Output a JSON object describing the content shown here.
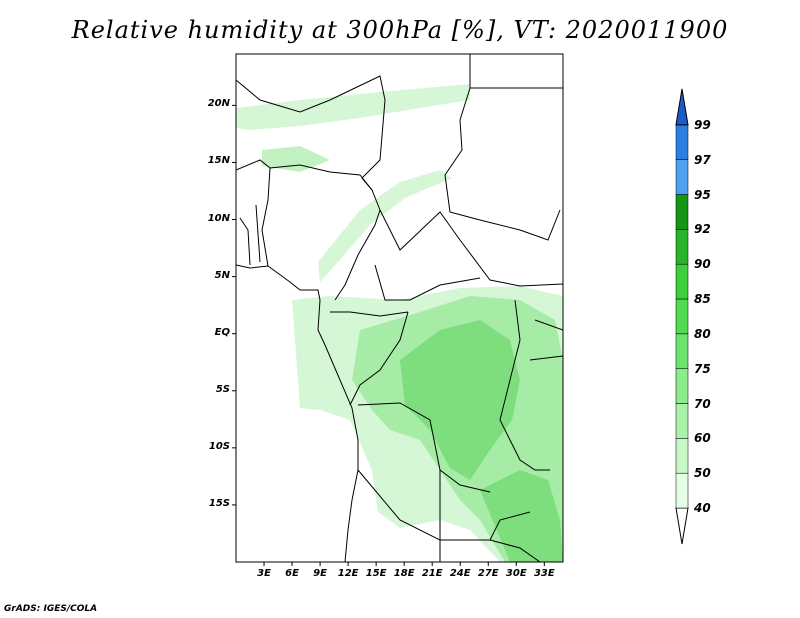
{
  "title": "Relative humidity at 300hPa [%], VT: 2020011900",
  "credit": "GrADS: IGES/COLA",
  "lat_ticks": [
    {
      "label": "20N",
      "lat": 20
    },
    {
      "label": "15N",
      "lat": 15
    },
    {
      "label": "10N",
      "lat": 10
    },
    {
      "label": "5N",
      "lat": 5
    },
    {
      "label": "EQ",
      "lat": 0
    },
    {
      "label": "5S",
      "lat": -5
    },
    {
      "label": "10S",
      "lat": -10
    },
    {
      "label": "15S",
      "lat": -15
    }
  ],
  "lon_ticks": [
    {
      "label": "3E",
      "lon": 3
    },
    {
      "label": "6E",
      "lon": 6
    },
    {
      "label": "9E",
      "lon": 9
    },
    {
      "label": "12E",
      "lon": 12
    },
    {
      "label": "15E",
      "lon": 15
    },
    {
      "label": "18E",
      "lon": 18
    },
    {
      "label": "21E",
      "lon": 21
    },
    {
      "label": "24E",
      "lon": 24
    },
    {
      "label": "27E",
      "lon": 27
    },
    {
      "label": "30E",
      "lon": 30
    },
    {
      "label": "33E",
      "lon": 33
    }
  ],
  "colorbar": {
    "levels": [
      "40",
      "50",
      "60",
      "70",
      "75",
      "80",
      "85",
      "90",
      "92",
      "95",
      "97",
      "99"
    ],
    "colors": [
      "#e6fde6",
      "#c8f8c8",
      "#aaf2aa",
      "#8cec8c",
      "#6ee46e",
      "#50dc50",
      "#3cd03c",
      "#28b428",
      "#149614",
      "#4ea0f0",
      "#2c7ee0",
      "#1e5ac8"
    ]
  },
  "map": {
    "lon_range": [
      0,
      35
    ],
    "lat_range": [
      -20,
      24.5
    ],
    "shade_colors": {
      "light": "#d6f7d6",
      "mid": "#a6eca6",
      "strong": "#7ede7e"
    }
  }
}
